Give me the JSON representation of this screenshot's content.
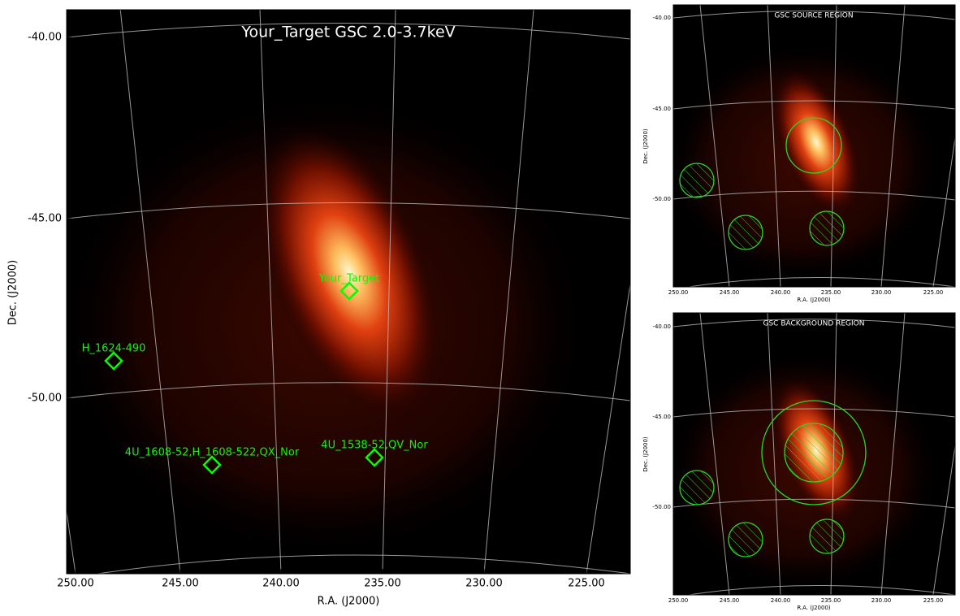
{
  "main": {
    "title": "Your_Target GSC 2.0-3.7keV",
    "x_axis_label": "R.A. (J2000)",
    "y_axis_label": "Dec. (J2000)",
    "x_ticks": [
      "250.00",
      "245.00",
      "240.00",
      "235.00",
      "230.00",
      "225.00"
    ],
    "y_ticks": [
      "-40.00",
      "-45.00",
      "-50.00"
    ],
    "sources": [
      {
        "label": "Your_Target"
      },
      {
        "label": "H_1624-490"
      },
      {
        "label": "4U_1608-52,H_1608-522,QX_Nor"
      },
      {
        "label": "4U_1538-52,QV_Nor"
      }
    ]
  },
  "panels": [
    {
      "title": "GSC SOURCE REGION",
      "x_axis_label": "R.A. (J2000)",
      "y_axis_label": "Dec. (J2000)",
      "x_ticks": [
        "250.00",
        "245.00",
        "240.00",
        "235.00",
        "230.00",
        "225.00"
      ],
      "y_ticks": [
        "-40.00",
        "-45.00",
        "-50.00"
      ]
    },
    {
      "title": "GSC BACKGROUND REGION",
      "x_axis_label": "R.A. (J2000)",
      "y_axis_label": "Dec. (J2000)",
      "x_ticks": [
        "250.00",
        "245.00",
        "240.00",
        "235.00",
        "230.00",
        "225.00"
      ],
      "y_ticks": [
        "-40.00",
        "-45.00",
        "-50.00"
      ]
    }
  ]
}
